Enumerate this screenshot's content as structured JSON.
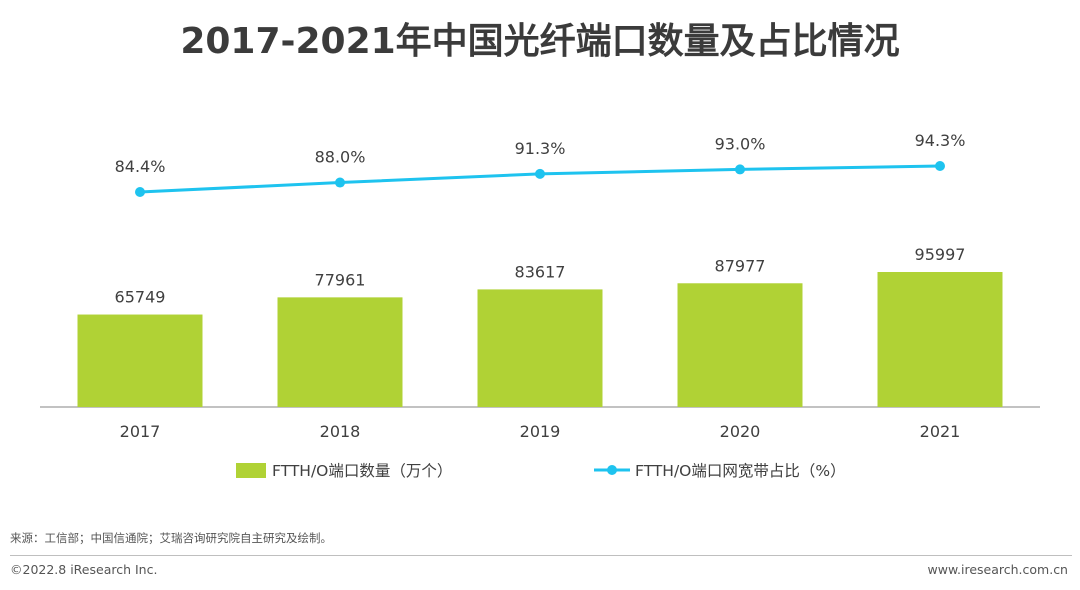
{
  "page": {
    "title": "2017-2021年中国光纤端口数量及占比情况",
    "source": "来源：工信部；中国信通院；艾瑞咨询研究院自主研究及绘制。",
    "copyright": "©2022.8 iResearch Inc.",
    "website": "www.iresearch.com.cn"
  },
  "chart_data": {
    "type": "bar",
    "title": "2017-2021年中国光纤端口数量及占比情况",
    "categories": [
      "2017",
      "2018",
      "2019",
      "2020",
      "2021"
    ],
    "series": [
      {
        "name": "FTTH/O端口数量（万个）",
        "type": "bar",
        "color": "#b0d235",
        "values": [
          65749,
          77961,
          83617,
          87977,
          95997
        ],
        "labels": [
          "65749",
          "77961",
          "83617",
          "87977",
          "95997"
        ]
      },
      {
        "name": "FTTH/O端口网宽带占比（%）",
        "type": "line",
        "color": "#1ec3ef",
        "values": [
          84.4,
          88.0,
          91.3,
          93.0,
          94.3
        ],
        "labels": [
          "84.4%",
          "88.0%",
          "91.3%",
          "93.0%",
          "94.3%"
        ]
      }
    ],
    "bar_axis_range": [
      0,
      100000
    ],
    "line_axis_range": [
      0,
      100
    ],
    "xlabel": "",
    "ylabel": "",
    "grid": false,
    "legend": "bottom"
  }
}
